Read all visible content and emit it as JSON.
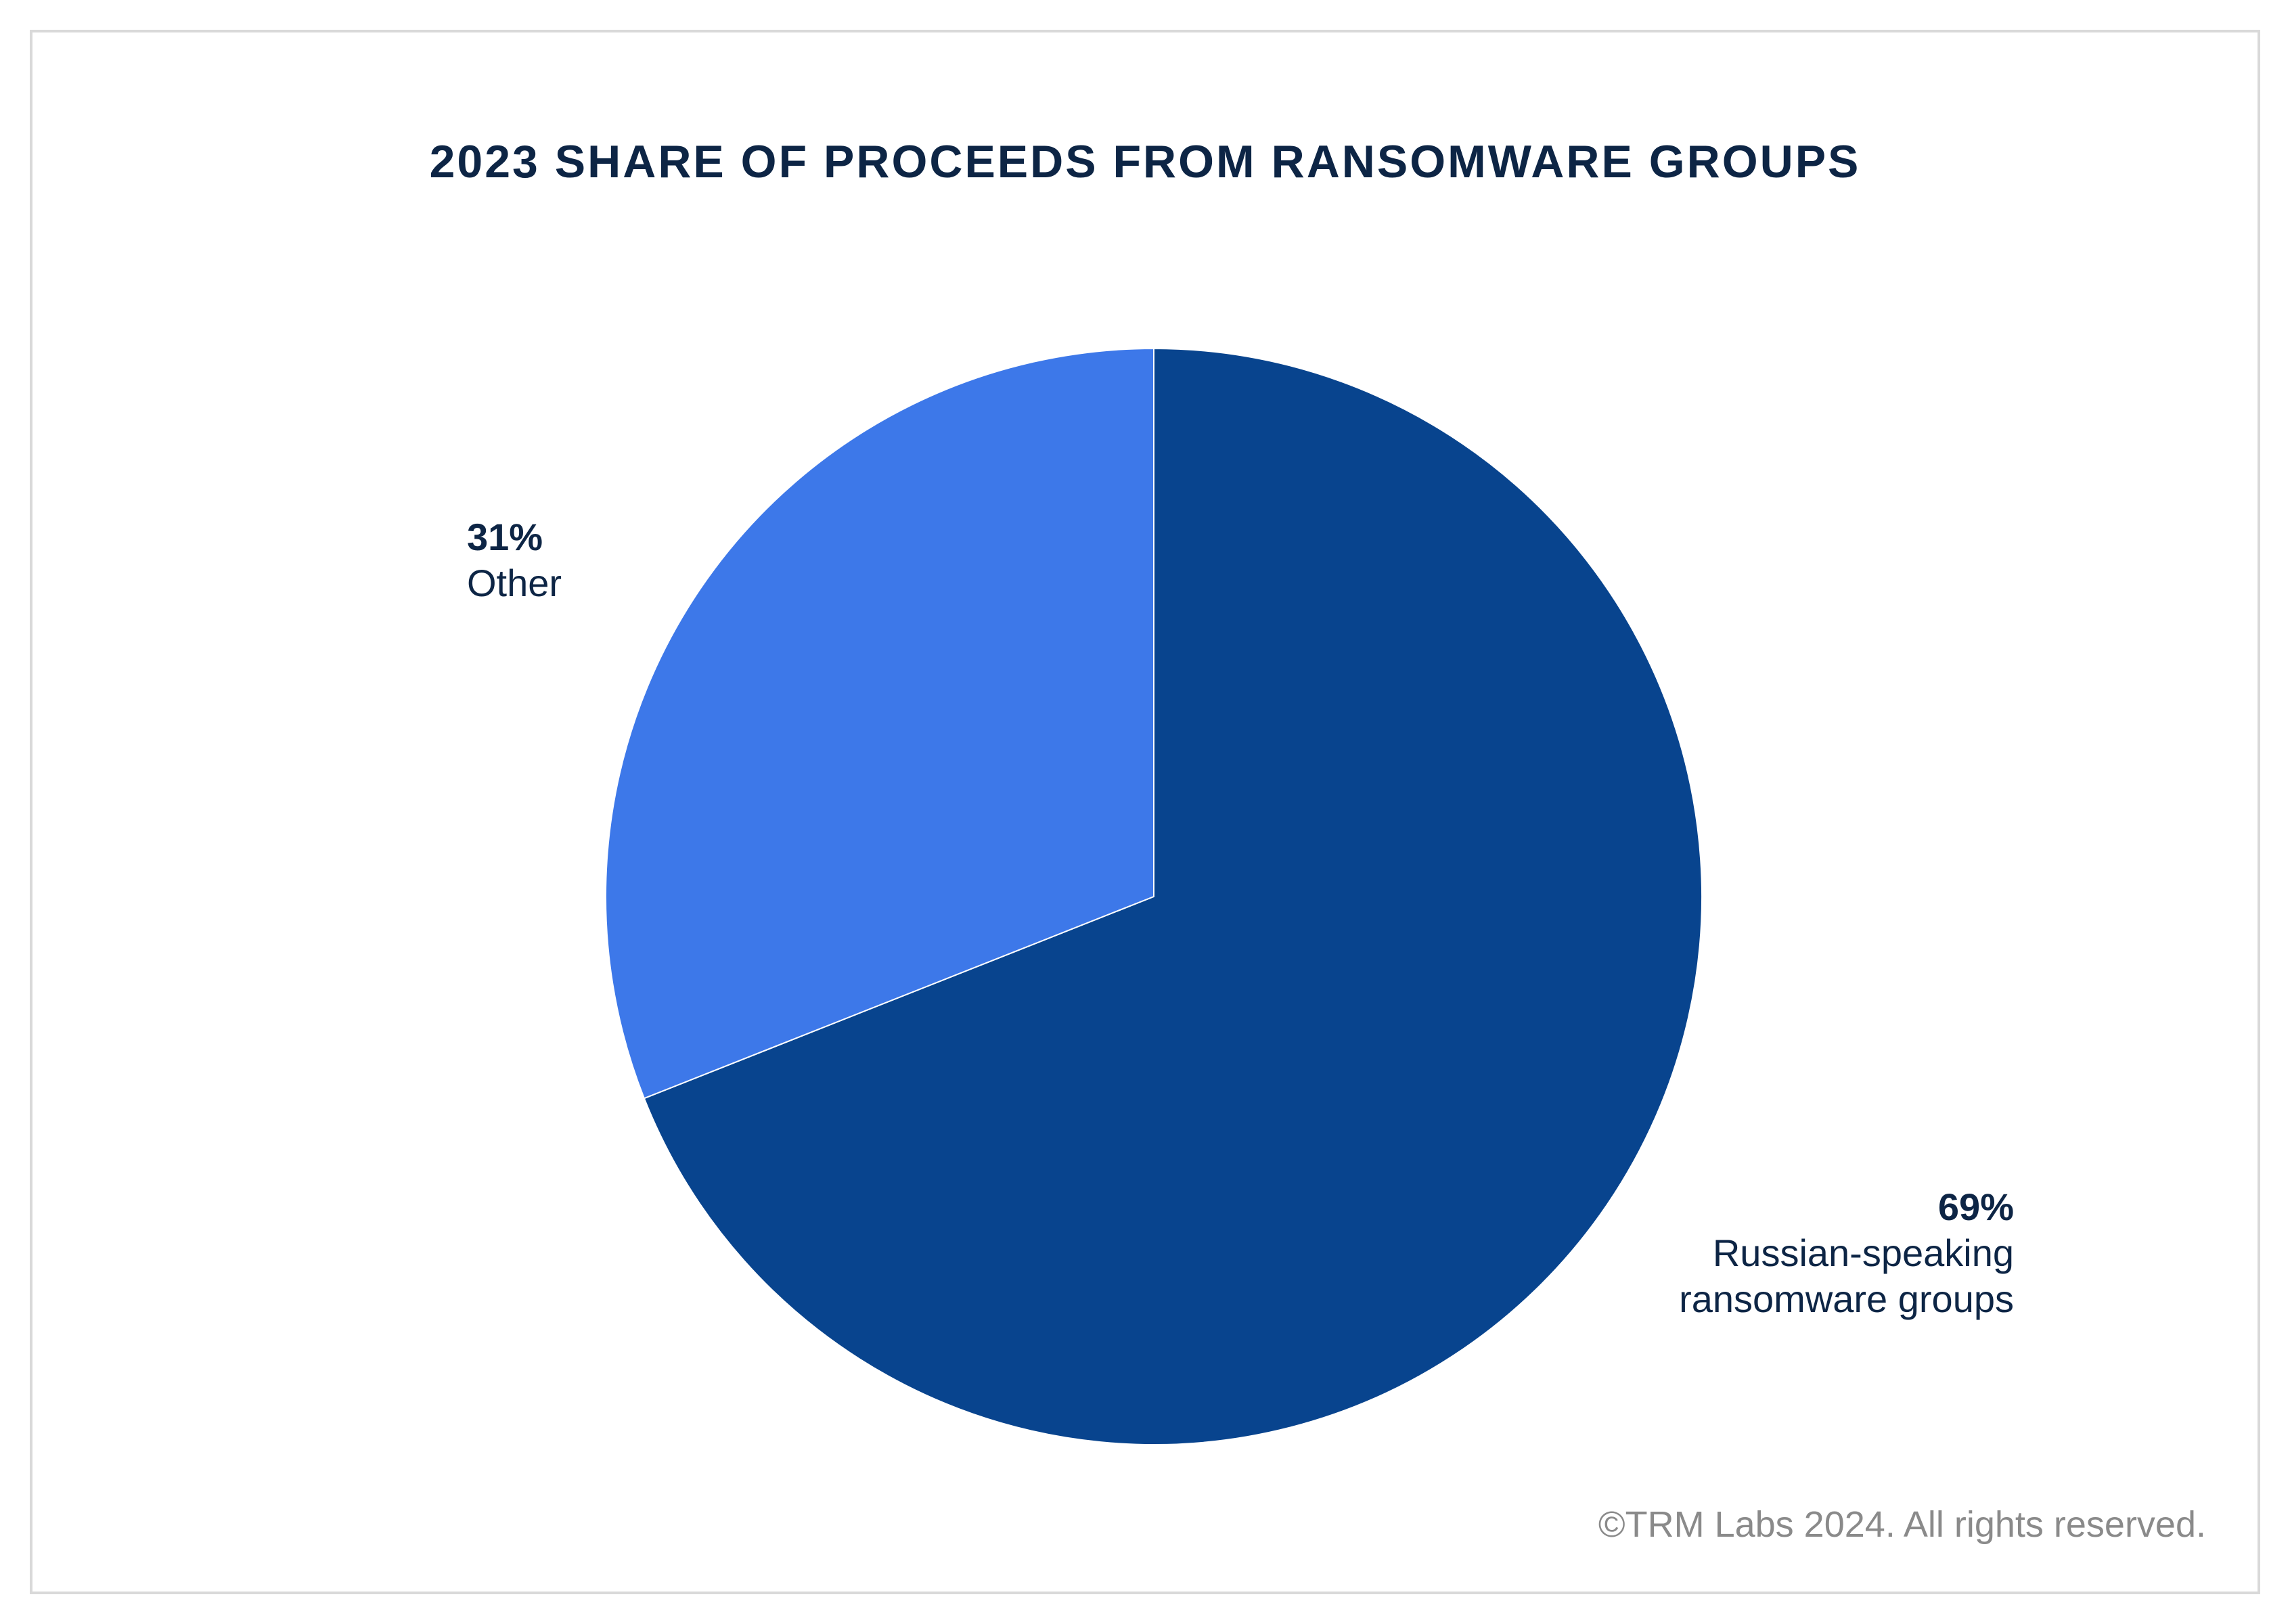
{
  "chart_data": {
    "type": "pie",
    "title": "2023 SHARE OF PROCEEDS FROM RANSOMWARE GROUPS",
    "slices": [
      {
        "label": "Russian-speaking ransomware groups",
        "value": 69,
        "display_value": "69%",
        "color": "#08448e"
      },
      {
        "label": "Other",
        "value": 31,
        "display_value": "31%",
        "color": "#3d78e9"
      }
    ],
    "start_angle_deg": 0,
    "direction": "clockwise"
  },
  "labels": {
    "other": {
      "pct": "31%",
      "name": "Other"
    },
    "russian": {
      "pct": "69%",
      "name": "Russian-speaking\nransomware groups"
    }
  },
  "footer": {
    "copyright": "©TRM Labs 2024. All rights reserved."
  },
  "colors": {
    "text": "#0d2545",
    "muted": "#8a8a8a",
    "border": "#d9d9d9"
  }
}
